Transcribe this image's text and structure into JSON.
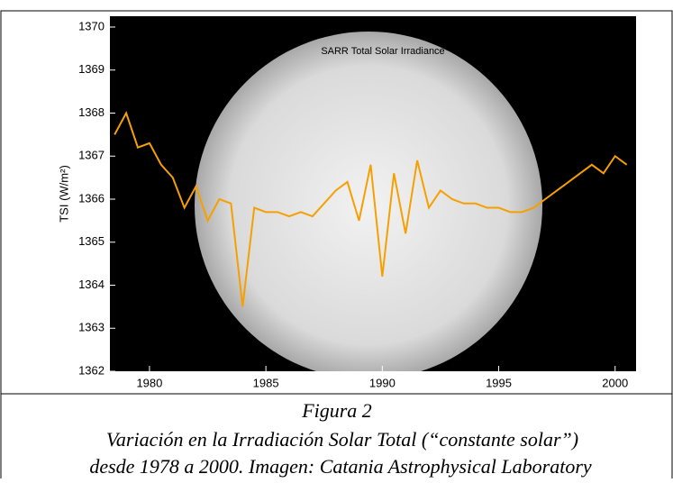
{
  "chart_data": {
    "type": "line",
    "title": "SARR Total Solar Irradiance",
    "ylabel": "TSI (W/m²)",
    "x": [
      1978.5,
      1979,
      1979.5,
      1980,
      1980.5,
      1981,
      1981.5,
      1982,
      1982.5,
      1983,
      1983.5,
      1984,
      1984.5,
      1985,
      1985.5,
      1986,
      1986.5,
      1987,
      1987.5,
      1988,
      1988.5,
      1989,
      1989.5,
      1990,
      1990.5,
      1991,
      1991.5,
      1992,
      1992.5,
      1993,
      1993.5,
      1994,
      1994.5,
      1995,
      1995.5,
      1996,
      1996.5,
      1997,
      1997.5,
      1998,
      1998.5,
      1999,
      1999.5,
      2000,
      2000.5
    ],
    "series": [
      {
        "color": "#f5a000",
        "values": [
          1367.5,
          1368,
          1367.2,
          1367.3,
          1366.8,
          1366.5,
          1365.8,
          1366.3,
          1365.5,
          1366,
          1365.9,
          1363.5,
          1365.8,
          1365.7,
          1365.7,
          1365.6,
          1365.7,
          1365.6,
          1365.9,
          1366.2,
          1366.4,
          1365.5,
          1366.8,
          1364.2,
          1366.6,
          1365.2,
          1366.9,
          1365.8,
          1366.2,
          1366,
          1365.9,
          1365.9,
          1365.8,
          1365.8,
          1365.7,
          1365.7,
          1365.8,
          1366,
          1366.2,
          1366.4,
          1366.6,
          1366.8,
          1366.6,
          1367,
          1366.8
        ]
      }
    ],
    "xlim": [
      1978.3,
      2000.9
    ],
    "xticks": [
      1980,
      1985,
      1990,
      1995,
      2000
    ],
    "ylim": [
      1362,
      1370
    ],
    "yticks": [
      1362,
      1363,
      1364,
      1365,
      1366,
      1367,
      1368,
      1369,
      1370
    ]
  },
  "caption": {
    "label": "Figura 2",
    "lines": [
      "Variación en la Irradiación Solar Total (“constante solar”)",
      "desde 1978 a 2000. Imagen: Catania Astrophysical Laboratory"
    ]
  }
}
